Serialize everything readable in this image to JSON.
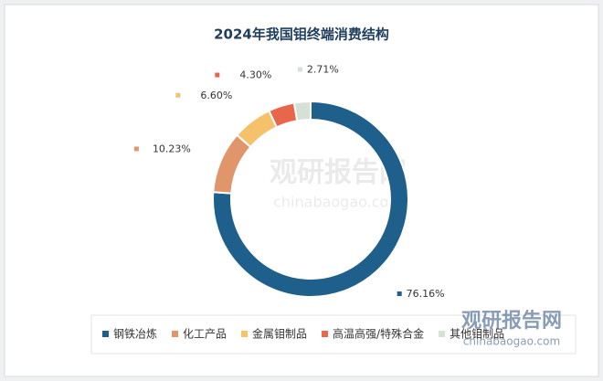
{
  "chart_data": {
    "type": "donut",
    "title": "2024年我国钼终端消费结构",
    "categories": [
      "钢铁冶炼",
      "化工产品",
      "金属钼制品",
      "高温高强/特殊合金",
      "其他钼制品"
    ],
    "values": [
      76.16,
      10.23,
      6.6,
      4.3,
      2.71
    ],
    "value_labels": [
      "76.16%",
      "10.23%",
      "6.60%",
      "4.30%",
      "2.71%"
    ],
    "colors": [
      "#1f5f8b",
      "#e0956a",
      "#f5c26b",
      "#e8674a",
      "#d5e0d6"
    ],
    "legend": "bottom",
    "watermark": [
      "观研报告网",
      "chinabaogao.com"
    ]
  }
}
